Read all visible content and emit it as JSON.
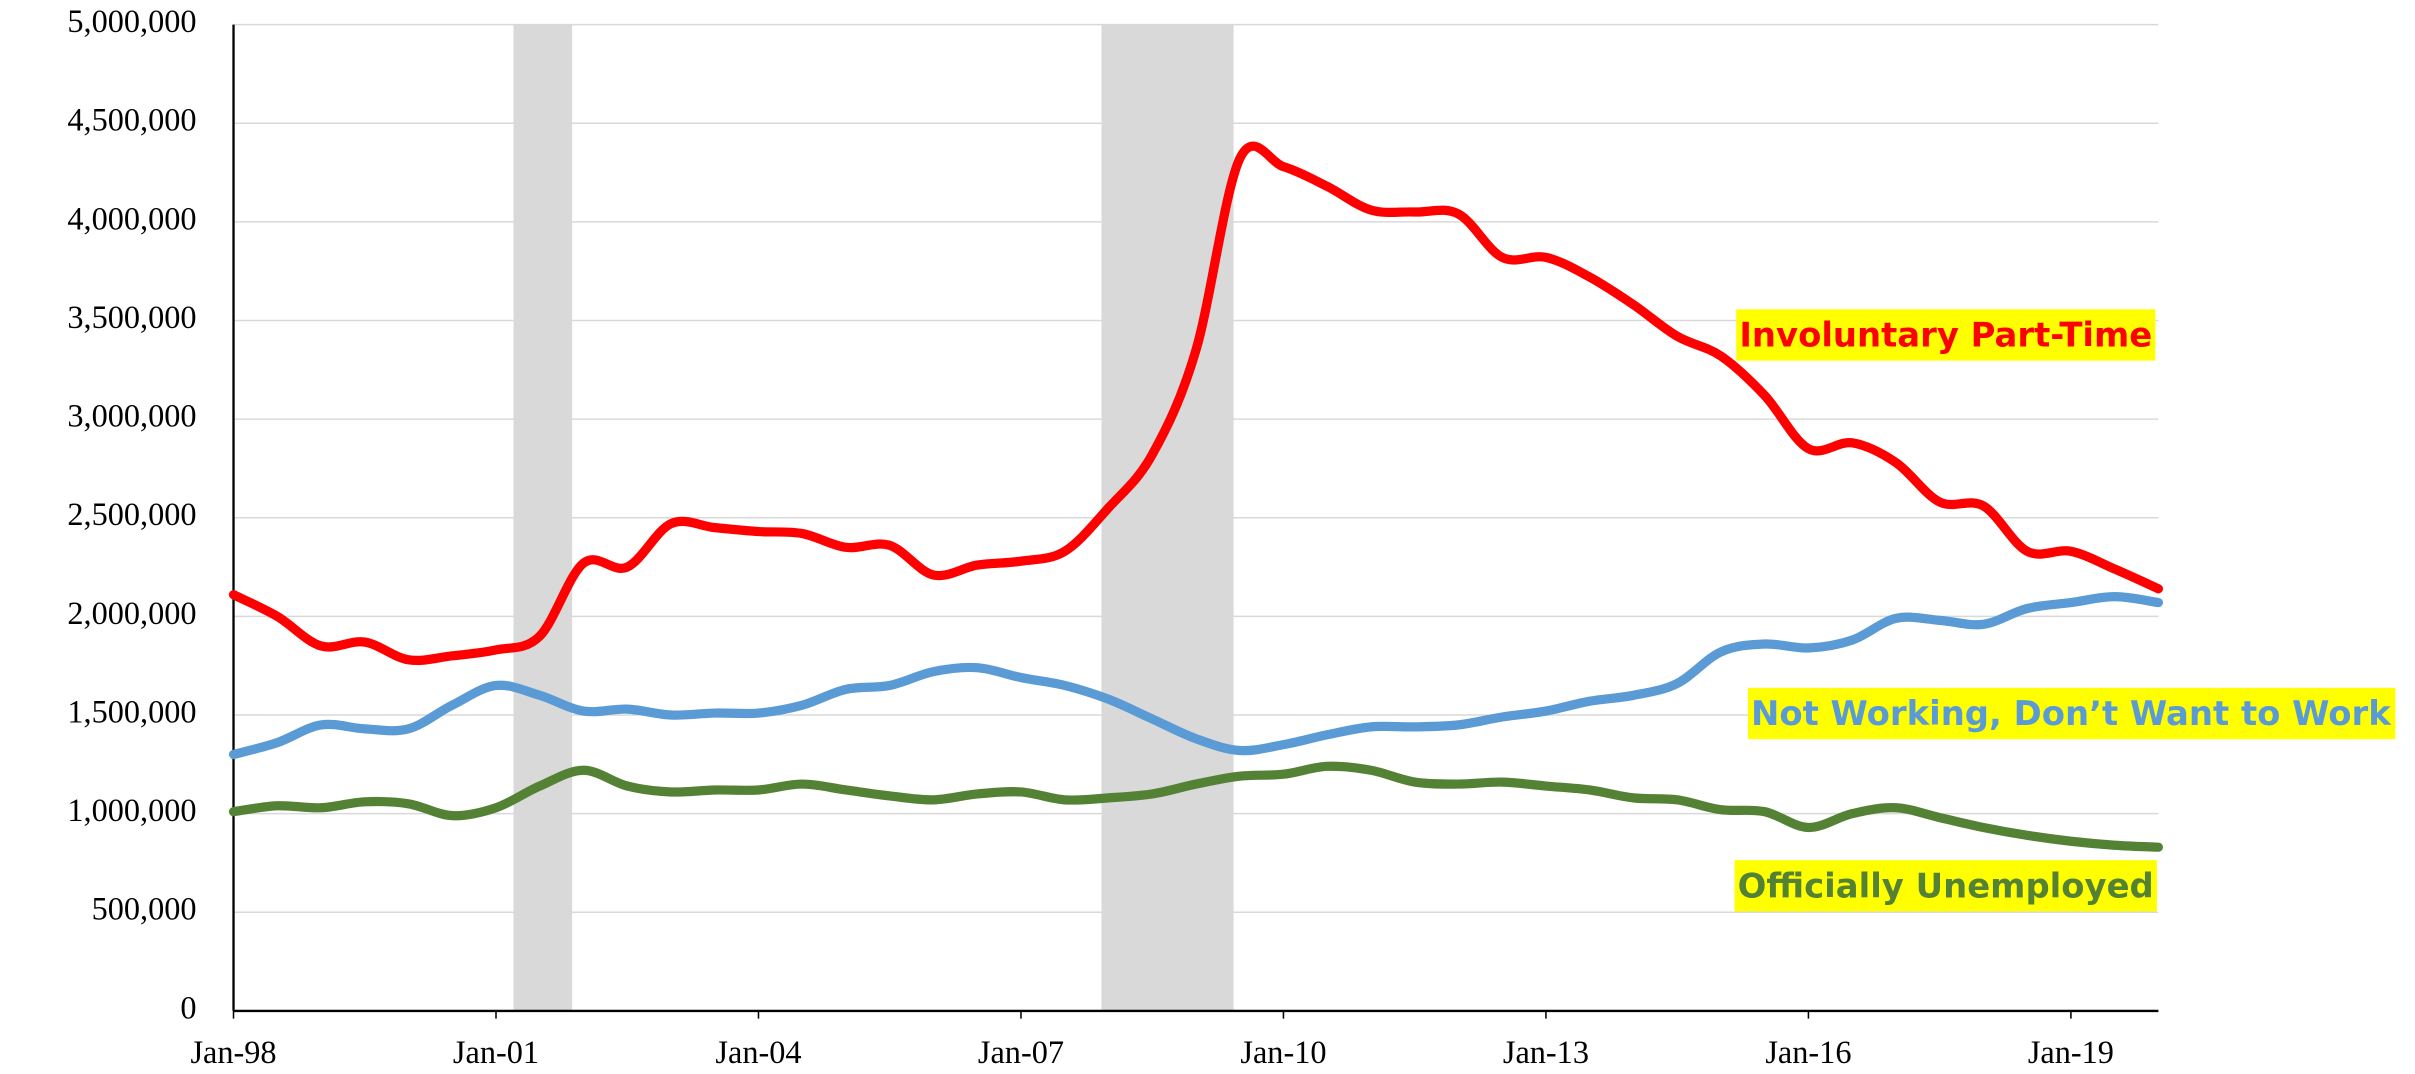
{
  "chart_data": {
    "type": "line",
    "x": [
      1998,
      1998.5,
      1999,
      1999.5,
      2000,
      2000.5,
      2001,
      2001.5,
      2002,
      2002.5,
      2003,
      2003.5,
      2004,
      2004.5,
      2005,
      2005.5,
      2006,
      2006.5,
      2007,
      2007.5,
      2008,
      2008.5,
      2009,
      2009.5,
      2010,
      2010.5,
      2011,
      2011.5,
      2012,
      2012.5,
      2013,
      2013.5,
      2014,
      2014.5,
      2015,
      2015.5,
      2016,
      2016.5,
      2017,
      2017.5,
      2018,
      2018.5,
      2019,
      2019.5,
      2020
    ],
    "series": [
      {
        "name": "Involuntary Part-Time",
        "color": "#ff0000",
        "values": [
          2110000,
          2000000,
          1850000,
          1870000,
          1780000,
          1800000,
          1830000,
          1900000,
          2270000,
          2250000,
          2470000,
          2450000,
          2430000,
          2420000,
          2350000,
          2360000,
          2210000,
          2260000,
          2280000,
          2330000,
          2550000,
          2820000,
          3350000,
          4320000,
          4280000,
          4180000,
          4060000,
          4050000,
          4040000,
          3820000,
          3820000,
          3720000,
          3580000,
          3420000,
          3320000,
          3120000,
          2850000,
          2880000,
          2780000,
          2580000,
          2560000,
          2330000,
          2330000,
          2240000,
          2140000
        ]
      },
      {
        "name": "Not Working, Don’t Want to Work",
        "color": "#5b9bd5",
        "values": [
          1300000,
          1360000,
          1450000,
          1430000,
          1430000,
          1550000,
          1650000,
          1600000,
          1520000,
          1530000,
          1500000,
          1510000,
          1510000,
          1550000,
          1630000,
          1650000,
          1720000,
          1740000,
          1690000,
          1650000,
          1580000,
          1480000,
          1380000,
          1320000,
          1350000,
          1400000,
          1440000,
          1440000,
          1450000,
          1490000,
          1520000,
          1570000,
          1600000,
          1660000,
          1820000,
          1860000,
          1840000,
          1880000,
          1990000,
          1980000,
          1960000,
          2040000,
          2070000,
          2100000,
          2070000
        ]
      },
      {
        "name": "Officially Unemployed",
        "color": "#548235",
        "values": [
          1010000,
          1040000,
          1030000,
          1060000,
          1050000,
          990000,
          1030000,
          1140000,
          1220000,
          1140000,
          1110000,
          1120000,
          1120000,
          1150000,
          1120000,
          1090000,
          1070000,
          1100000,
          1110000,
          1070000,
          1080000,
          1100000,
          1150000,
          1190000,
          1200000,
          1240000,
          1220000,
          1160000,
          1150000,
          1160000,
          1140000,
          1120000,
          1080000,
          1070000,
          1020000,
          1010000,
          930000,
          1000000,
          1030000,
          980000,
          930000,
          890000,
          860000,
          840000,
          830000
        ]
      }
    ],
    "shaded_periods": [
      [
        2001.2,
        2001.87
      ],
      [
        2007.92,
        2009.43
      ]
    ],
    "shade_color": "#d9d9d9",
    "xlim": [
      1998,
      2020
    ],
    "xticks": [
      {
        "value": 1998,
        "label": "Jan-98"
      },
      {
        "value": 2001,
        "label": "Jan-01"
      },
      {
        "value": 2004,
        "label": "Jan-04"
      },
      {
        "value": 2007,
        "label": "Jan-07"
      },
      {
        "value": 2010,
        "label": "Jan-10"
      },
      {
        "value": 2013,
        "label": "Jan-13"
      },
      {
        "value": 2016,
        "label": "Jan-16"
      },
      {
        "value": 2019,
        "label": "Jan-19"
      }
    ],
    "ylim": [
      0,
      5000000
    ],
    "yticks": [
      0,
      {
        "value": 500000,
        "label": "500,000"
      },
      {
        "value": 1000000,
        "label": "1,000,000"
      },
      {
        "value": 1500000,
        "label": "1,500,000"
      },
      {
        "value": 2000000,
        "label": "2,000,000"
      },
      {
        "value": 2500000,
        "label": "2,500,000"
      },
      {
        "value": 3000000,
        "label": "3,000,000"
      },
      {
        "value": 3500000,
        "label": "3,500,000"
      },
      {
        "value": 4000000,
        "label": "4,000,000"
      },
      {
        "value": 4500000,
        "label": "4,500,000"
      },
      {
        "value": 5000000,
        "label": "5,000,000"
      }
    ],
    "grid": true,
    "label_background": "#ffff00"
  }
}
